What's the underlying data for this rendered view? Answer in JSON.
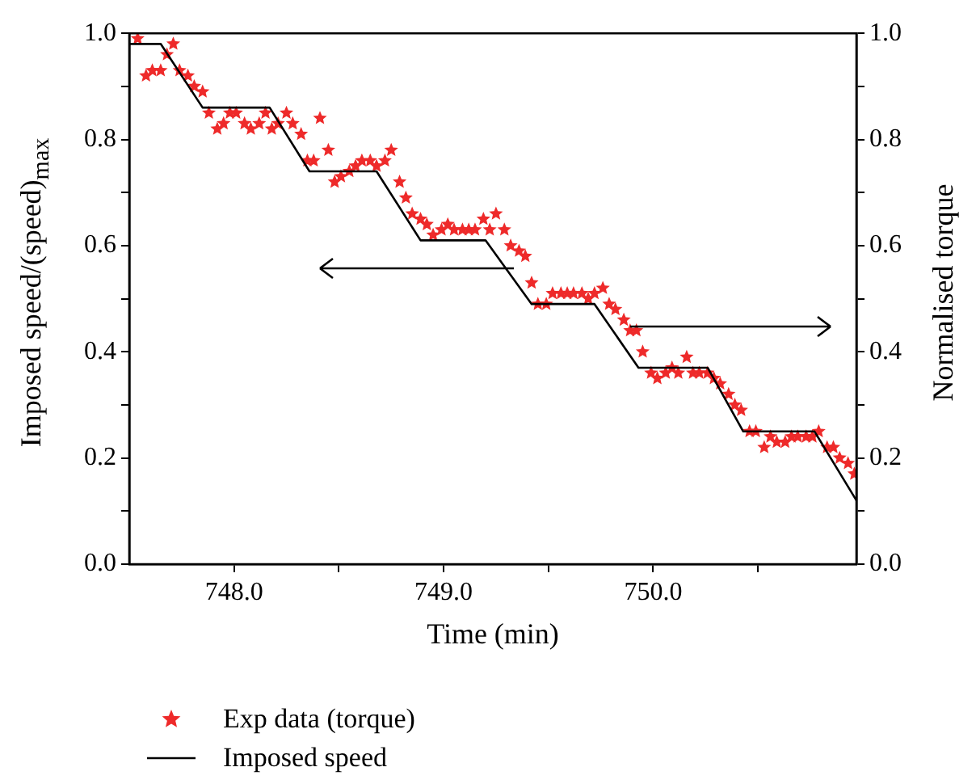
{
  "chart_data": {
    "type": "scatter",
    "xlabel": "Time (min)",
    "ylabel": "Imposed speed/(speed)$_{max}$",
    "y2label": "Normalised torque",
    "xlim": [
      747.5,
      750.97
    ],
    "xticks": [
      {
        "value": 748,
        "label": "748.0"
      },
      {
        "value": 748.5,
        "label": null
      },
      {
        "value": 749,
        "label": "749.0"
      },
      {
        "value": 749.5,
        "label": null
      },
      {
        "value": 750,
        "label": "750.0"
      },
      {
        "value": 750.5,
        "label": null
      }
    ],
    "ylim": [
      0,
      1
    ],
    "yticks": [
      {
        "value": 0,
        "label": "0.0"
      },
      {
        "value": 0.1,
        "label": null
      },
      {
        "value": 0.2,
        "label": "0.2"
      },
      {
        "value": 0.3,
        "label": null
      },
      {
        "value": 0.4,
        "label": "0.4"
      },
      {
        "value": 0.5,
        "label": null
      },
      {
        "value": 0.6,
        "label": "0.6"
      },
      {
        "value": 0.7,
        "label": null
      },
      {
        "value": 0.8,
        "label": "0.8"
      },
      {
        "value": 0.9,
        "label": null
      },
      {
        "value": 1,
        "label": "1.0"
      }
    ],
    "y2lim": [
      0,
      1
    ],
    "y2ticks": [
      {
        "value": 0,
        "label": "0.0"
      },
      {
        "value": 0.1,
        "label": null
      },
      {
        "value": 0.2,
        "label": "0.2"
      },
      {
        "value": 0.3,
        "label": null
      },
      {
        "value": 0.4,
        "label": "0.4"
      },
      {
        "value": 0.5,
        "label": null
      },
      {
        "value": 0.6,
        "label": "0.6"
      },
      {
        "value": 0.7,
        "label": null
      },
      {
        "value": 0.8,
        "label": "0.8"
      },
      {
        "value": 0.9,
        "label": null
      },
      {
        "value": 1,
        "label": "1.0"
      }
    ],
    "legend": "bottom",
    "series": [
      {
        "name": "Exp data (torque)",
        "marker": "star",
        "color": "#ee2a2a",
        "x": [
          747.54,
          747.58,
          747.61,
          747.65,
          747.68,
          747.71,
          747.74,
          747.78,
          747.81,
          747.85,
          747.88,
          747.92,
          747.95,
          747.98,
          748.01,
          748.05,
          748.08,
          748.12,
          748.15,
          748.18,
          748.21,
          748.25,
          748.28,
          748.32,
          748.35,
          748.38,
          748.41,
          748.45,
          748.48,
          748.51,
          748.55,
          748.58,
          748.61,
          748.65,
          748.68,
          748.72,
          748.75,
          748.79,
          748.82,
          748.85,
          748.89,
          748.92,
          748.95,
          748.99,
          749.02,
          749.05,
          749.09,
          749.12,
          749.15,
          749.19,
          749.22,
          749.25,
          749.29,
          749.32,
          749.36,
          749.39,
          749.42,
          749.45,
          749.49,
          749.52,
          749.56,
          749.59,
          749.62,
          749.66,
          749.69,
          749.72,
          749.76,
          749.79,
          749.82,
          749.86,
          749.89,
          749.92,
          749.95,
          749.99,
          750.02,
          750.06,
          750.09,
          750.12,
          750.16,
          750.19,
          750.22,
          750.26,
          750.29,
          750.32,
          750.36,
          750.39,
          750.42,
          750.46,
          750.49,
          750.53,
          750.56,
          750.59,
          750.63,
          750.66,
          750.69,
          750.73,
          750.76,
          750.79,
          750.83,
          750.86,
          750.89,
          750.93,
          750.96
        ],
        "values": [
          0.99,
          0.92,
          0.93,
          0.93,
          0.96,
          0.98,
          0.93,
          0.92,
          0.9,
          0.89,
          0.85,
          0.82,
          0.83,
          0.85,
          0.85,
          0.83,
          0.82,
          0.83,
          0.85,
          0.82,
          0.83,
          0.85,
          0.83,
          0.81,
          0.76,
          0.76,
          0.84,
          0.78,
          0.72,
          0.73,
          0.74,
          0.75,
          0.76,
          0.76,
          0.75,
          0.76,
          0.78,
          0.72,
          0.69,
          0.66,
          0.65,
          0.64,
          0.62,
          0.63,
          0.64,
          0.63,
          0.63,
          0.63,
          0.63,
          0.65,
          0.63,
          0.66,
          0.63,
          0.6,
          0.59,
          0.58,
          0.53,
          0.49,
          0.49,
          0.51,
          0.51,
          0.51,
          0.51,
          0.51,
          0.5,
          0.51,
          0.52,
          0.49,
          0.48,
          0.46,
          0.44,
          0.44,
          0.4,
          0.36,
          0.35,
          0.36,
          0.37,
          0.36,
          0.39,
          0.36,
          0.36,
          0.36,
          0.35,
          0.34,
          0.32,
          0.3,
          0.29,
          0.25,
          0.25,
          0.22,
          0.24,
          0.23,
          0.23,
          0.24,
          0.24,
          0.24,
          0.24,
          0.25,
          0.22,
          0.22,
          0.2,
          0.19,
          0.17
        ]
      },
      {
        "name": "Imposed speed",
        "type": "line",
        "color": "#000000",
        "x": [
          747.5,
          747.65,
          747.85,
          748.17,
          748.36,
          748.68,
          748.89,
          749.2,
          749.42,
          749.72,
          749.93,
          750.26,
          750.43,
          750.77,
          750.97
        ],
        "values": [
          0.98,
          0.98,
          0.86,
          0.86,
          0.74,
          0.74,
          0.61,
          0.61,
          0.49,
          0.49,
          0.37,
          0.37,
          0.25,
          0.25,
          0.12
        ]
      }
    ]
  }
}
